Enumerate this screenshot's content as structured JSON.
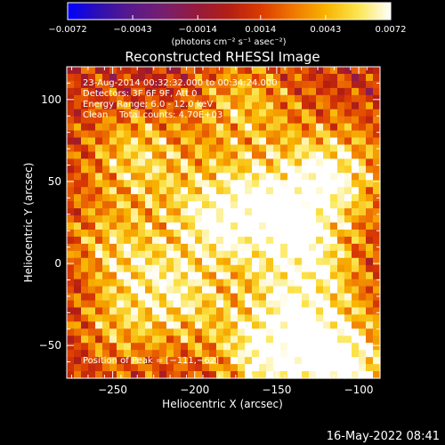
{
  "chart_data": {
    "type": "heatmap",
    "title": "Reconstructed RHESSI Image",
    "xlabel": "Heliocentric X (arcsec)",
    "ylabel": "Heliocentric Y (arcsec)",
    "xlim": [
      -278,
      -87
    ],
    "ylim": [
      -70,
      120
    ],
    "x_ticks": [
      -250,
      -200,
      -150,
      -100
    ],
    "x_tick_labels": [
      "−250",
      "−200",
      "−150",
      "−100"
    ],
    "y_ticks": [
      -50,
      0,
      50,
      100
    ],
    "y_tick_labels": [
      "−50",
      "0",
      "50",
      "100"
    ],
    "colorbar": {
      "range": [
        -0.0072,
        0.0072
      ],
      "ticks": [
        -0.0072,
        -0.0043,
        -0.0014,
        0.0014,
        0.0043,
        0.0072
      ],
      "tick_labels": [
        "−0.0072",
        "−0.0043",
        "−0.0014",
        "0.0014",
        "0.0043",
        "0.0072"
      ],
      "units_label": "(photons cm⁻² s⁻¹ asec⁻²)",
      "colormap": [
        "#0000ff",
        "#3010b0",
        "#5a1a8a",
        "#781e6e",
        "#961a3c",
        "#b41e14",
        "#dc3c00",
        "#f07800",
        "#f8b400",
        "#fce650",
        "#ffffff"
      ]
    },
    "annotations": [
      "23-Aug-2014 00:32:32.000 to 00:34:24.000",
      "Detectors: 3F 6F 9F, Att 0",
      "Energy Range: 6.0 - 12.0 keV",
      "Clean    Total counts: 4.70E+03"
    ],
    "peak_label": "Position of Peak = [−111,−62]",
    "peak": [
      -111,
      -62
    ],
    "bright_sources": [
      {
        "x": -111,
        "y": -62,
        "value": 0.0072
      },
      {
        "x": -155,
        "y": -52,
        "value": 0.0065
      },
      {
        "x": -185,
        "y": 30,
        "value": 0.006
      },
      {
        "x": -145,
        "y": 30,
        "value": 0.0058
      },
      {
        "x": -115,
        "y": 55,
        "value": 0.0055
      },
      {
        "x": -235,
        "y": 65,
        "value": 0.0045
      },
      {
        "x": -210,
        "y": -20,
        "value": 0.0048
      },
      {
        "x": -250,
        "y": 5,
        "value": 0.004
      },
      {
        "x": -170,
        "y": 95,
        "value": 0.0038
      },
      {
        "x": -130,
        "y": -10,
        "value": 0.005
      },
      {
        "x": -255,
        "y": -40,
        "value": 0.003
      }
    ],
    "dim_regions": [
      {
        "x": -268,
        "y": -15,
        "value": -0.002
      },
      {
        "x": -225,
        "y": 110,
        "value": -0.001
      },
      {
        "x": -275,
        "y": -55,
        "value": -0.0015
      }
    ]
  },
  "footer": {
    "date": "16-May-2022 08:41"
  }
}
